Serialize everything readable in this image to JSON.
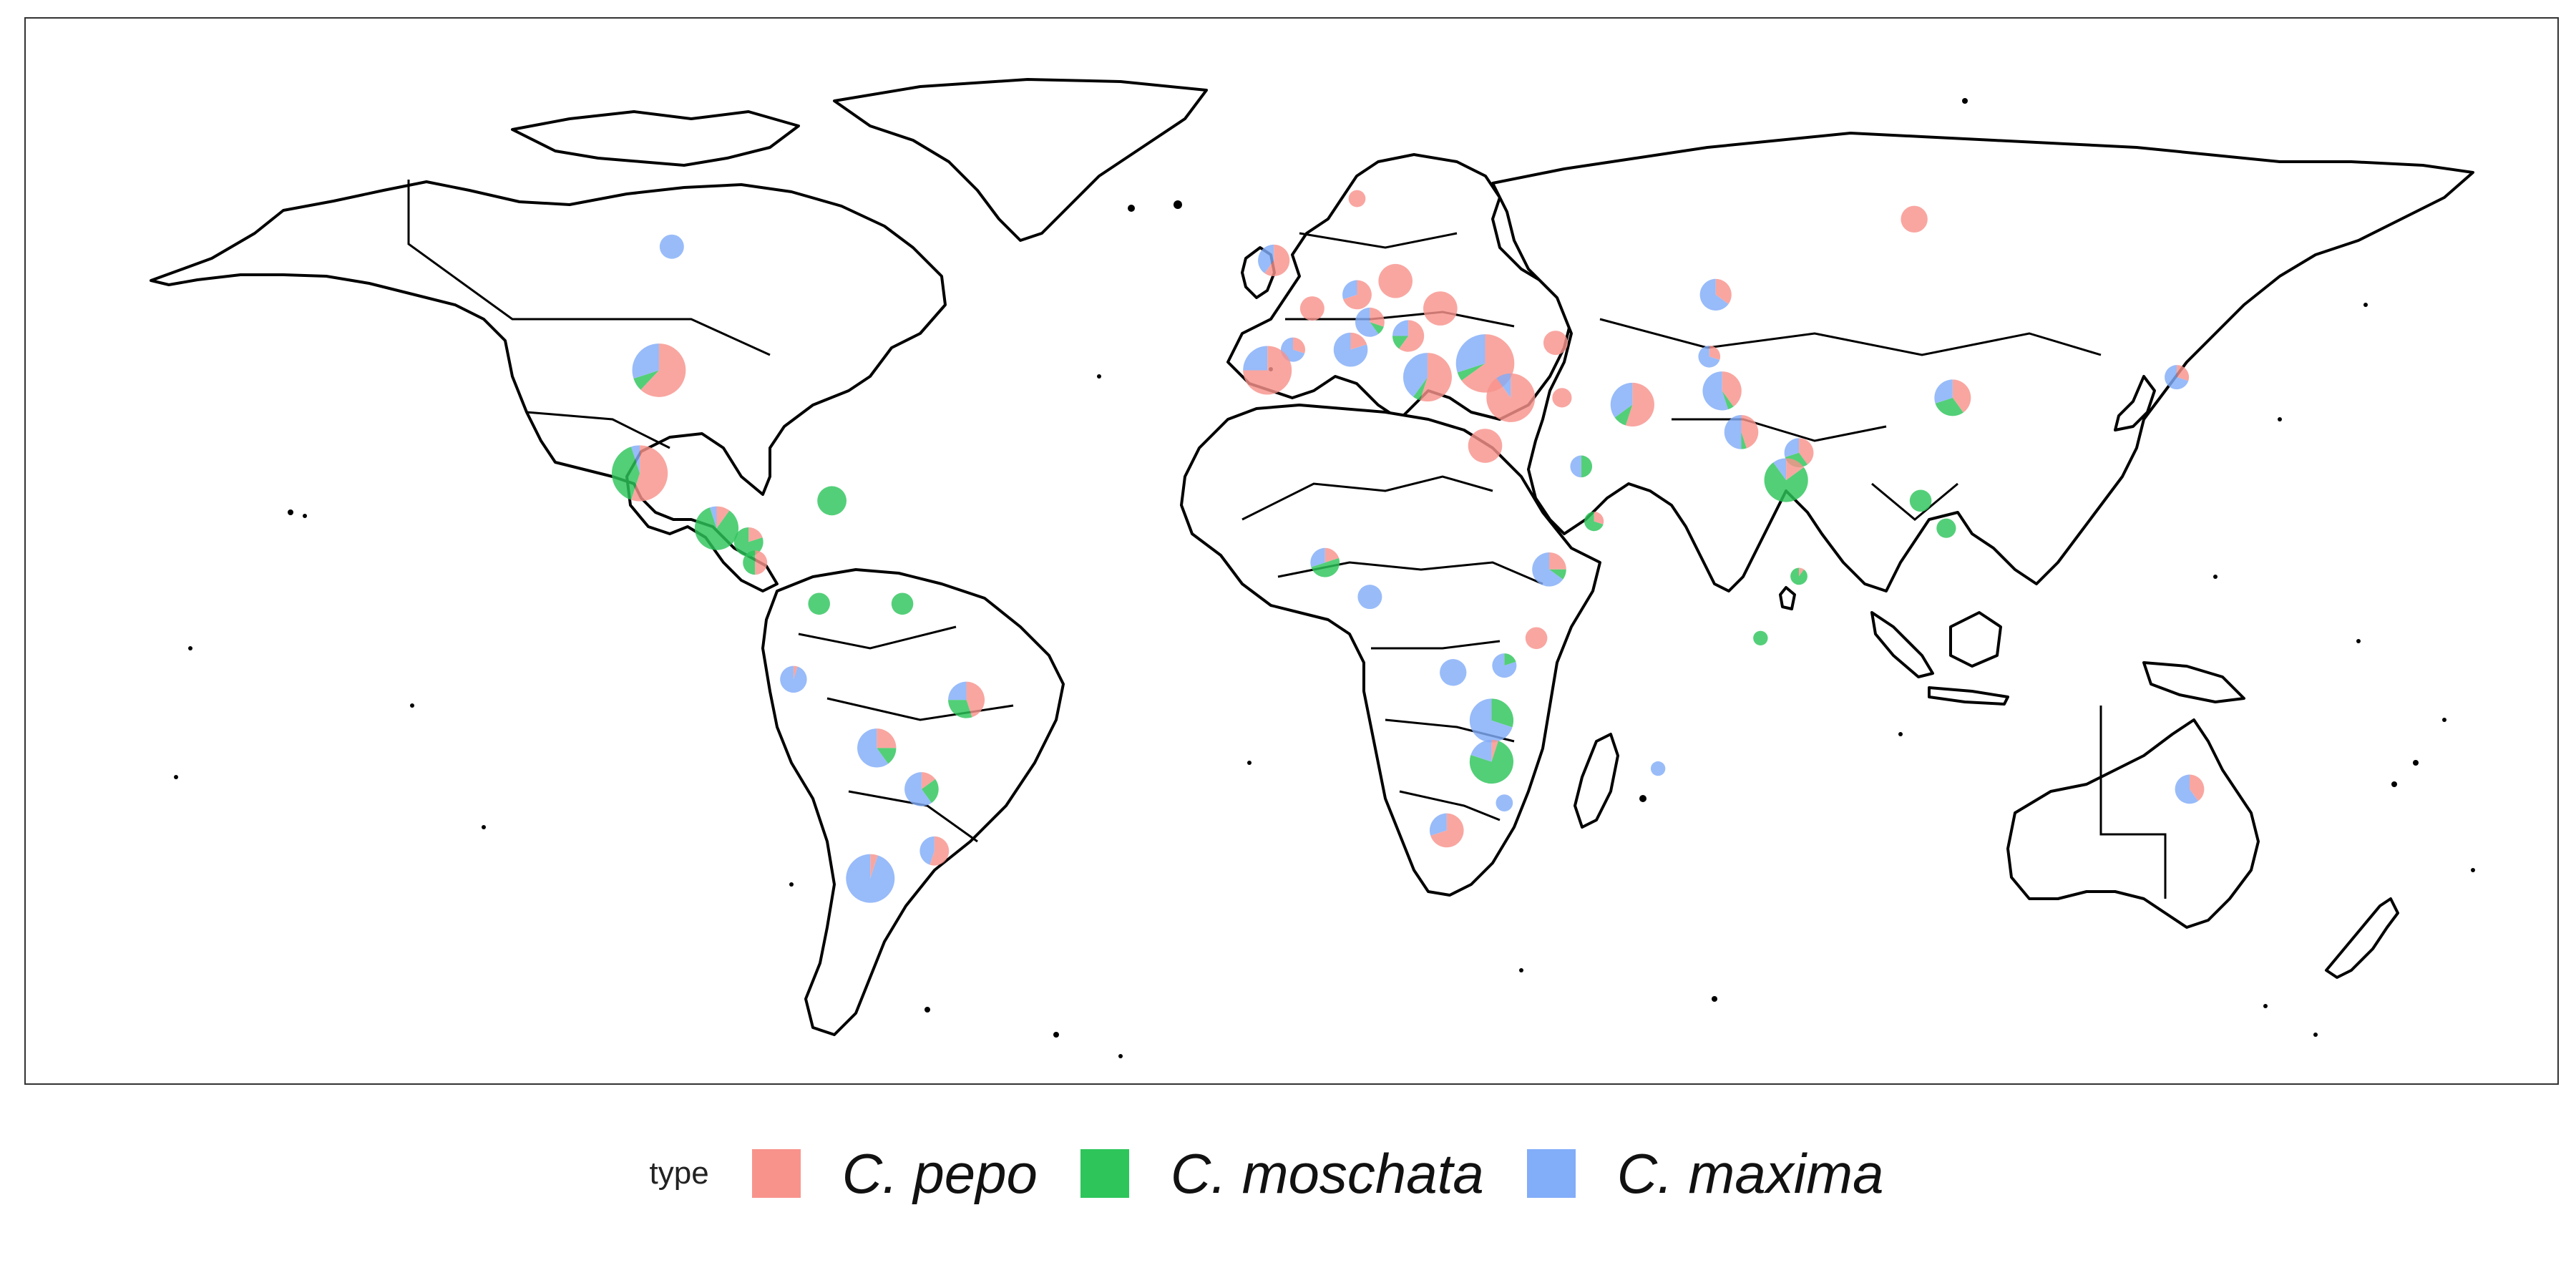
{
  "legend": {
    "title": "type",
    "items": [
      {
        "label": "C. pepo",
        "color": "#F8938C"
      },
      {
        "label": "C. moschata",
        "color": "#2EC55B"
      },
      {
        "label": "C. maxima",
        "color": "#82ADF8"
      }
    ]
  },
  "map": {
    "projection": "equirectangular",
    "extent": {
      "lon": [
        -180,
        180
      ],
      "lat": [
        -60,
        84
      ]
    },
    "marker_type": "pie",
    "marker_opacity": 0.82
  },
  "chart_data": {
    "type": "scatter",
    "encoding": "pie charts at locations; fractions of C. pepo, C. moschata, C. maxima; size ~ sample count",
    "series": [
      "C. pepo",
      "C. moschata",
      "C. maxima"
    ],
    "points": [
      {
        "lon": -97,
        "lat": 56,
        "r": 1.0,
        "pepo": 0,
        "moschata": 0,
        "maxima": 1
      },
      {
        "lon": -99,
        "lat": 38,
        "r": 2.2,
        "pepo": 0.62,
        "moschata": 0.08,
        "maxima": 0.3
      },
      {
        "lon": -102,
        "lat": 23,
        "r": 2.3,
        "pepo": 0.55,
        "moschata": 0.4,
        "maxima": 0.05
      },
      {
        "lon": -90,
        "lat": 15,
        "r": 1.8,
        "pepo": 0.1,
        "moschata": 0.85,
        "maxima": 0.05
      },
      {
        "lon": -85,
        "lat": 13,
        "r": 1.2,
        "pepo": 0.2,
        "moschata": 0.8,
        "maxima": 0
      },
      {
        "lon": -84,
        "lat": 10,
        "r": 1.0,
        "pepo": 0.5,
        "moschata": 0.5,
        "maxima": 0
      },
      {
        "lon": -72,
        "lat": 19,
        "r": 1.2,
        "pepo": 0,
        "moschata": 1,
        "maxima": 0
      },
      {
        "lon": -74,
        "lat": 4,
        "r": 0.9,
        "pepo": 0,
        "moschata": 1,
        "maxima": 0
      },
      {
        "lon": -61,
        "lat": 4,
        "r": 0.9,
        "pepo": 0,
        "moschata": 1,
        "maxima": 0
      },
      {
        "lon": -78,
        "lat": -7,
        "r": 1.1,
        "pepo": 0.05,
        "moschata": 0,
        "maxima": 0.95
      },
      {
        "lon": -51,
        "lat": -10,
        "r": 1.5,
        "pepo": 0.45,
        "moschata": 0.3,
        "maxima": 0.25
      },
      {
        "lon": -65,
        "lat": -17,
        "r": 1.6,
        "pepo": 0.25,
        "moschata": 0.15,
        "maxima": 0.6
      },
      {
        "lon": -58,
        "lat": -23,
        "r": 1.4,
        "pepo": 0.15,
        "moschata": 0.25,
        "maxima": 0.6
      },
      {
        "lon": -56,
        "lat": -32,
        "r": 1.2,
        "pepo": 0.55,
        "moschata": 0,
        "maxima": 0.45
      },
      {
        "lon": -66,
        "lat": -36,
        "r": 2.0,
        "pepo": 0.05,
        "moschata": 0,
        "maxima": 0.95
      },
      {
        "lon": -3,
        "lat": 54,
        "r": 1.3,
        "pepo": 0.6,
        "moschata": 0,
        "maxima": 0.4
      },
      {
        "lon": 10,
        "lat": 63,
        "r": 0.7,
        "pepo": 1,
        "moschata": 0,
        "maxima": 0
      },
      {
        "lon": 3,
        "lat": 47,
        "r": 1.0,
        "pepo": 1,
        "moschata": 0,
        "maxima": 0
      },
      {
        "lon": 10,
        "lat": 49,
        "r": 1.2,
        "pepo": 0.7,
        "moschata": 0,
        "maxima": 0.3
      },
      {
        "lon": 16,
        "lat": 51,
        "r": 1.4,
        "pepo": 1,
        "moschata": 0,
        "maxima": 0
      },
      {
        "lon": 23,
        "lat": 47,
        "r": 1.4,
        "pepo": 1,
        "moschata": 0,
        "maxima": 0
      },
      {
        "lon": 0,
        "lat": 41,
        "r": 1.0,
        "pepo": 0.3,
        "moschata": 0,
        "maxima": 0.7
      },
      {
        "lon": -4,
        "lat": 38,
        "r": 2.0,
        "pepo": 0.75,
        "moschata": 0,
        "maxima": 0.25
      },
      {
        "lon": 9,
        "lat": 41,
        "r": 1.4,
        "pepo": 0.2,
        "moschata": 0,
        "maxima": 0.8
      },
      {
        "lon": 12,
        "lat": 45,
        "r": 1.2,
        "pepo": 0.3,
        "moschata": 0.1,
        "maxima": 0.6
      },
      {
        "lon": 18,
        "lat": 43,
        "r": 1.3,
        "pepo": 0.6,
        "moschata": 0.15,
        "maxima": 0.25
      },
      {
        "lon": 21,
        "lat": 37,
        "r": 2.0,
        "pepo": 0.55,
        "moschata": 0.05,
        "maxima": 0.4
      },
      {
        "lon": 30,
        "lat": 39,
        "r": 2.4,
        "pepo": 0.65,
        "moschata": 0.05,
        "maxima": 0.3
      },
      {
        "lon": 34,
        "lat": 34,
        "r": 2.0,
        "pepo": 0.9,
        "moschata": 0,
        "maxima": 0.1
      },
      {
        "lon": 41,
        "lat": 42,
        "r": 1.0,
        "pepo": 1,
        "moschata": 0,
        "maxima": 0
      },
      {
        "lon": 42,
        "lat": 34,
        "r": 0.8,
        "pepo": 1,
        "moschata": 0,
        "maxima": 0
      },
      {
        "lon": 30,
        "lat": 27,
        "r": 1.4,
        "pepo": 1,
        "moschata": 0,
        "maxima": 0
      },
      {
        "lon": 53,
        "lat": 33,
        "r": 1.8,
        "pepo": 0.55,
        "moschata": 0.1,
        "maxima": 0.35
      },
      {
        "lon": 66,
        "lat": 49,
        "r": 1.3,
        "pepo": 0.35,
        "moschata": 0,
        "maxima": 0.65
      },
      {
        "lon": 65,
        "lat": 40,
        "r": 0.9,
        "pepo": 0.3,
        "moschata": 0,
        "maxima": 0.7
      },
      {
        "lon": 67,
        "lat": 35,
        "r": 1.6,
        "pepo": 0.4,
        "moschata": 0.05,
        "maxima": 0.55
      },
      {
        "lon": 70,
        "lat": 29,
        "r": 1.4,
        "pepo": 0.45,
        "moschata": 0.05,
        "maxima": 0.5
      },
      {
        "lon": 79,
        "lat": 26,
        "r": 1.2,
        "pepo": 0.4,
        "moschata": 0.3,
        "maxima": 0.3
      },
      {
        "lon": 77,
        "lat": 22,
        "r": 1.8,
        "pepo": 0.15,
        "moschata": 0.75,
        "maxima": 0.1
      },
      {
        "lon": 45,
        "lat": 24,
        "r": 0.9,
        "pepo": 0,
        "moschata": 0.5,
        "maxima": 0.5
      },
      {
        "lon": 47,
        "lat": 16,
        "r": 0.8,
        "pepo": 0.3,
        "moschata": 0.7,
        "maxima": 0
      },
      {
        "lon": 40,
        "lat": 9,
        "r": 1.4,
        "pepo": 0.25,
        "moschata": 0.1,
        "maxima": 0.65
      },
      {
        "lon": 38,
        "lat": -1,
        "r": 0.9,
        "pepo": 1,
        "moschata": 0,
        "maxima": 0
      },
      {
        "lon": 33,
        "lat": -5,
        "r": 1.0,
        "pepo": 0,
        "moschata": 0.2,
        "maxima": 0.8
      },
      {
        "lon": 25,
        "lat": -6,
        "r": 1.1,
        "pepo": 0,
        "moschata": 0,
        "maxima": 1
      },
      {
        "lon": 31,
        "lat": -13,
        "r": 1.8,
        "pepo": 0,
        "moschata": 0.3,
        "maxima": 0.7
      },
      {
        "lon": 31,
        "lat": -19,
        "r": 1.8,
        "pepo": 0.05,
        "moschata": 0.75,
        "maxima": 0.2
      },
      {
        "lon": 33,
        "lat": -25,
        "r": 0.7,
        "pepo": 0,
        "moschata": 0,
        "maxima": 1
      },
      {
        "lon": 24,
        "lat": -29,
        "r": 1.4,
        "pepo": 0.7,
        "moschata": 0,
        "maxima": 0.3
      },
      {
        "lon": 5,
        "lat": 10,
        "r": 1.2,
        "pepo": 0.2,
        "moschata": 0.5,
        "maxima": 0.3
      },
      {
        "lon": 12,
        "lat": 5,
        "r": 1.0,
        "pepo": 0,
        "moschata": 0,
        "maxima": 1
      },
      {
        "lon": 57,
        "lat": -20,
        "r": 0.6,
        "pepo": 0,
        "moschata": 0,
        "maxima": 1
      },
      {
        "lon": 73,
        "lat": -1,
        "r": 0.6,
        "pepo": 0,
        "moschata": 1,
        "maxima": 0
      },
      {
        "lon": 79,
        "lat": 8,
        "r": 0.7,
        "pepo": 0.1,
        "moschata": 0.9,
        "maxima": 0
      },
      {
        "lon": 103,
        "lat": 34,
        "r": 1.5,
        "pepo": 0.4,
        "moschata": 0.3,
        "maxima": 0.3
      },
      {
        "lon": 97,
        "lat": 60,
        "r": 1.1,
        "pepo": 1,
        "moschata": 0,
        "maxima": 0
      },
      {
        "lon": 98,
        "lat": 19,
        "r": 0.9,
        "pepo": 0,
        "moschata": 1,
        "maxima": 0
      },
      {
        "lon": 102,
        "lat": 15,
        "r": 0.8,
        "pepo": 0,
        "moschata": 1,
        "maxima": 0
      },
      {
        "lon": 138,
        "lat": 37,
        "r": 1.0,
        "pepo": 0.3,
        "moschata": 0,
        "maxima": 0.7
      },
      {
        "lon": 140,
        "lat": -23,
        "r": 1.2,
        "pepo": 0.4,
        "moschata": 0,
        "maxima": 0.6
      }
    ]
  }
}
